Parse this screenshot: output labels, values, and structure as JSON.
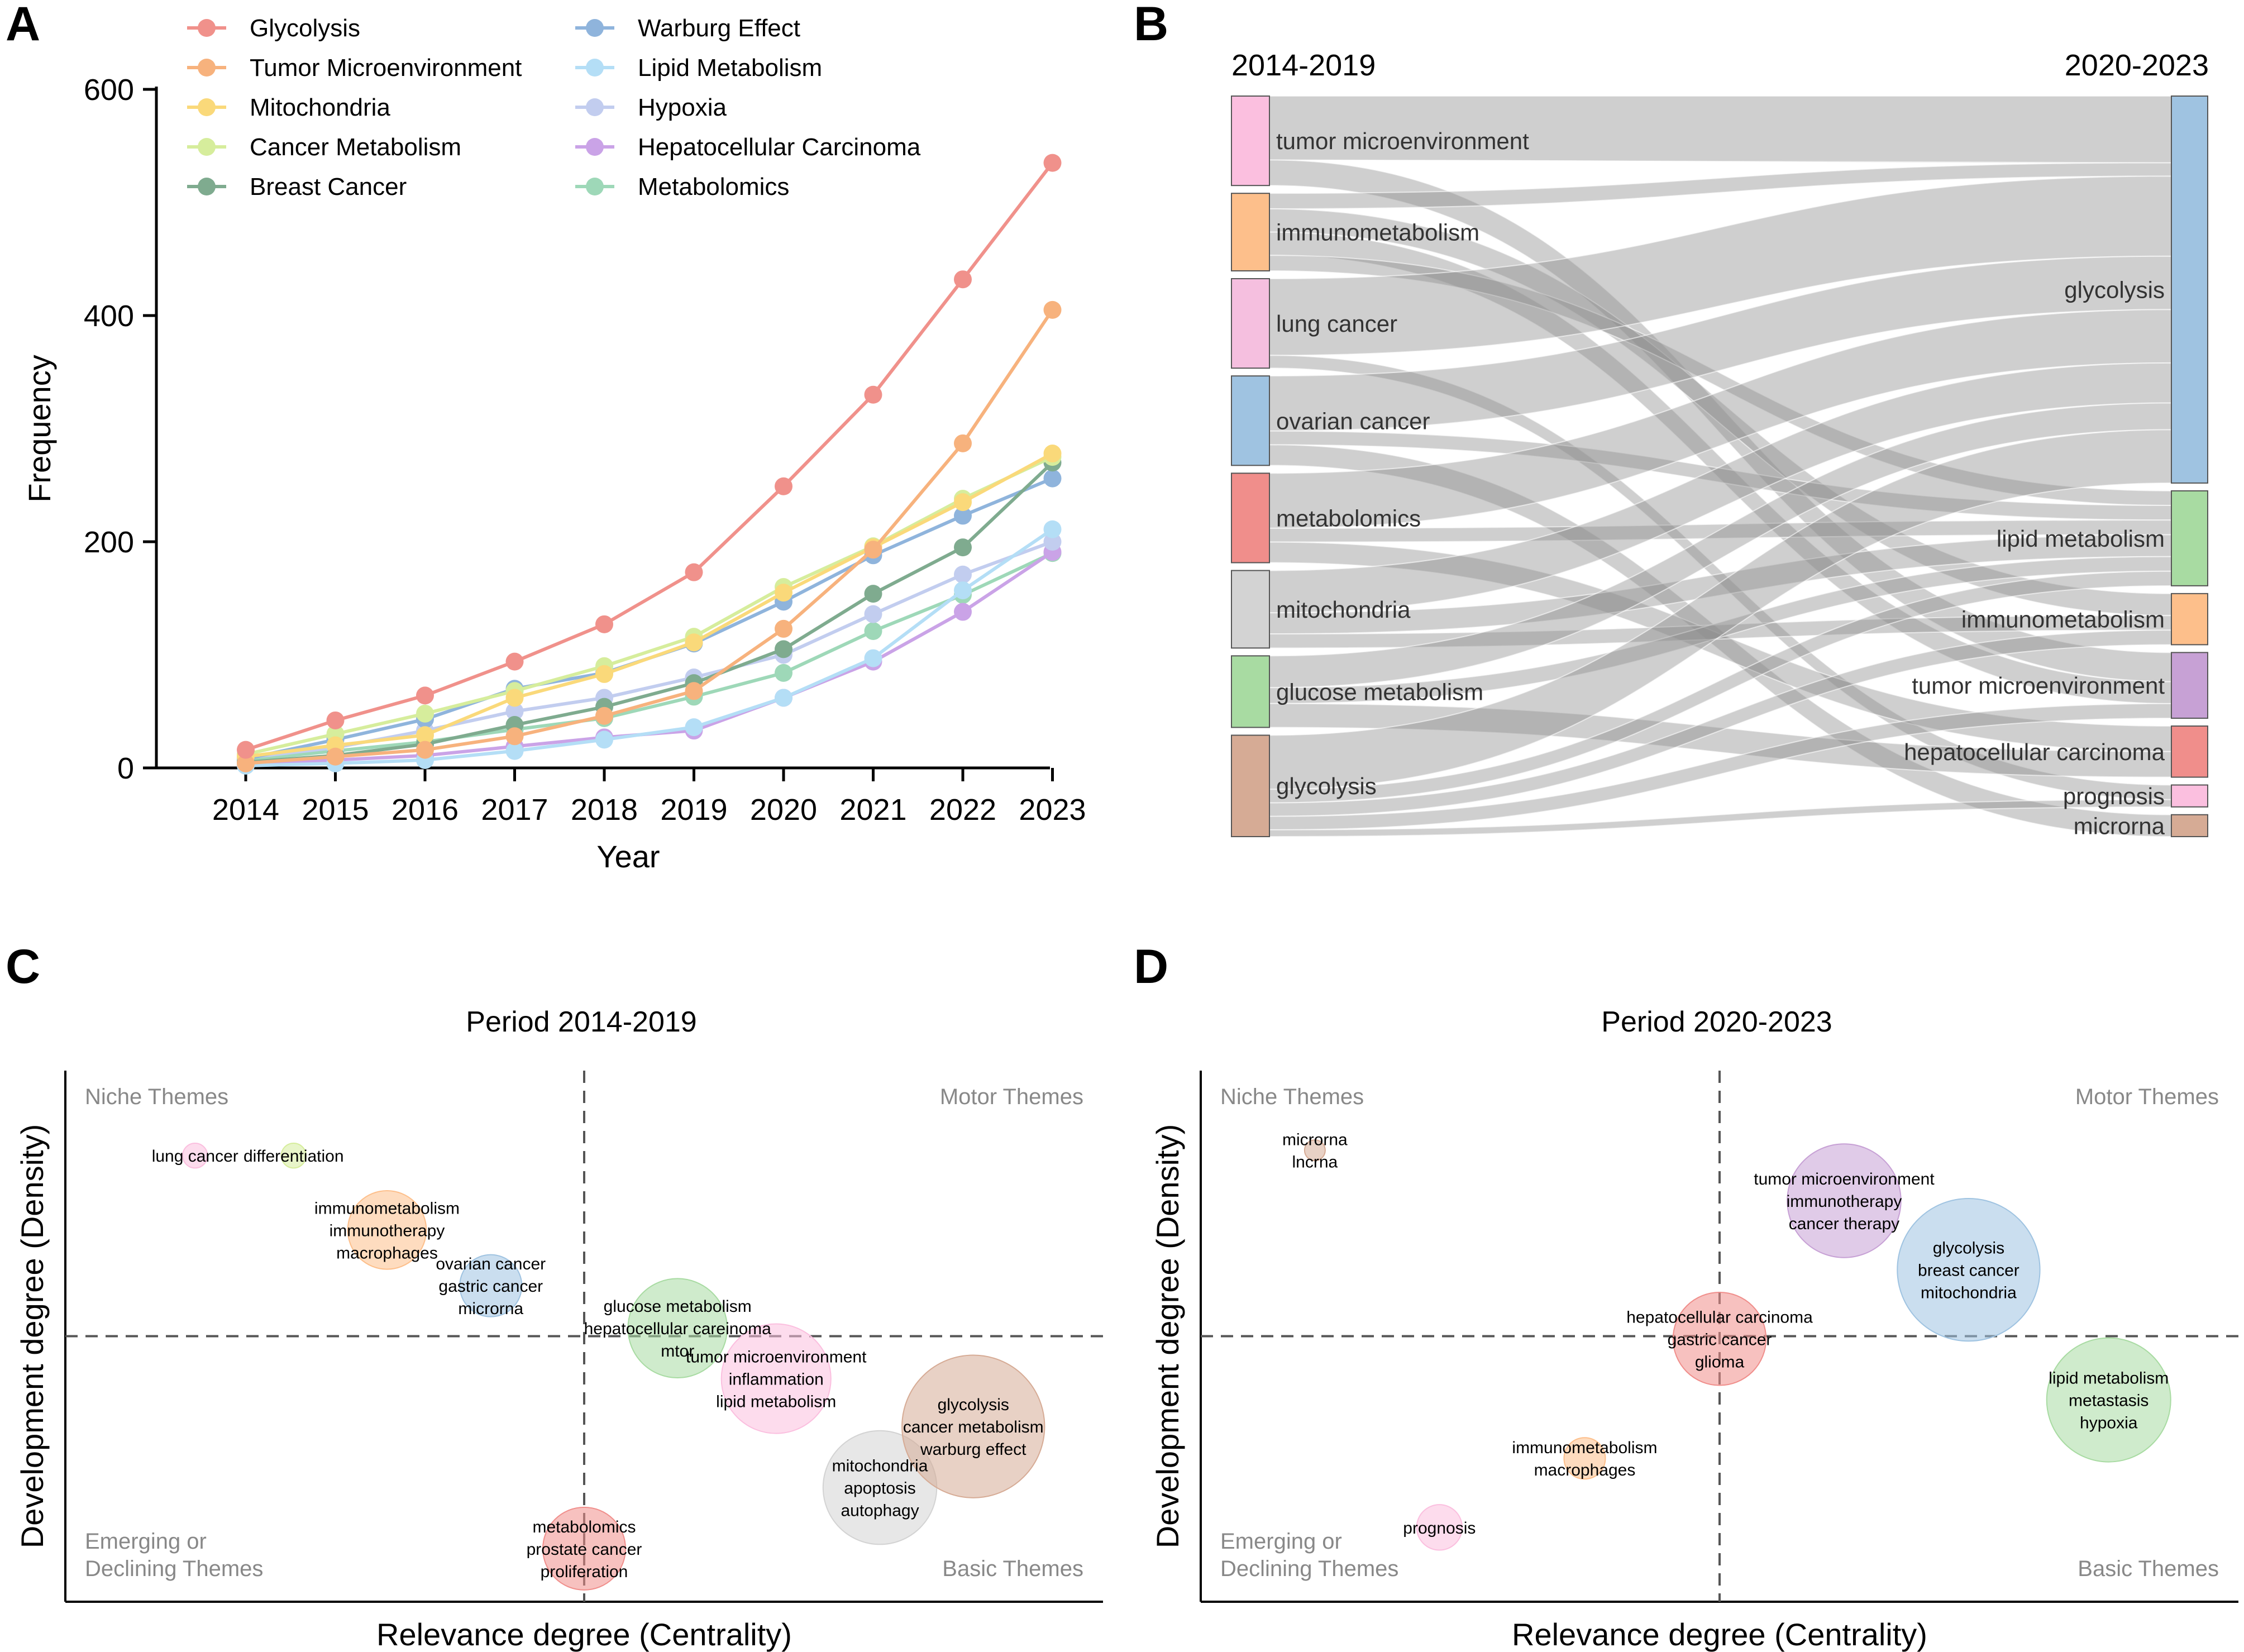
{
  "panels": {
    "a": "A",
    "b": "B",
    "c": "C",
    "d": "D"
  },
  "chart_data": [
    {
      "type": "line",
      "id": "A",
      "title": "",
      "xlabel": "Year",
      "ylabel": "Frequency",
      "x": [
        2014,
        2015,
        2016,
        2017,
        2018,
        2019,
        2020,
        2021,
        2022,
        2023
      ],
      "yticks": [
        0,
        200,
        400,
        600
      ],
      "ylim": [
        0,
        600
      ],
      "legend": "top-left, two columns",
      "series": [
        {
          "name": "Glycolysis",
          "color": "#f0918b",
          "values": [
            16,
            42,
            64,
            94,
            127,
            173,
            249,
            330,
            432,
            535
          ]
        },
        {
          "name": "Tumor Microenvironment",
          "color": "#f7b27d",
          "values": [
            4,
            10,
            16,
            28,
            46,
            68,
            123,
            193,
            287,
            405
          ]
        },
        {
          "name": "Mitochondria",
          "color": "#fad97a",
          "values": [
            10,
            20,
            29,
            62,
            83,
            111,
            155,
            195,
            235,
            278
          ]
        },
        {
          "name": "Cancer Metabolism",
          "color": "#d6ed9c",
          "values": [
            12,
            30,
            48,
            68,
            90,
            116,
            160,
            196,
            238,
            275
          ]
        },
        {
          "name": "Breast Cancer",
          "color": "#7fab8f",
          "values": [
            5,
            11,
            21,
            38,
            54,
            75,
            105,
            154,
            195,
            270
          ]
        },
        {
          "name": "Warburg Effect",
          "color": "#8fb4dc",
          "values": [
            8,
            25,
            43,
            70,
            84,
            110,
            147,
            188,
            223,
            256
          ]
        },
        {
          "name": "Lipid Metabolism",
          "color": "#b4def6",
          "values": [
            2,
            4,
            7,
            15,
            25,
            36,
            62,
            97,
            157,
            211
          ]
        },
        {
          "name": "Hypoxia",
          "color": "#c2cdef",
          "values": [
            9,
            18,
            33,
            50,
            62,
            80,
            100,
            136,
            171,
            200
          ]
        },
        {
          "name": "Hepatocellular Carcinoma",
          "color": "#caa3e7",
          "values": [
            3,
            7,
            11,
            19,
            27,
            33,
            62,
            94,
            138,
            191
          ]
        },
        {
          "name": "Metabolomics",
          "color": "#9ed8b8",
          "values": [
            7,
            15,
            23,
            34,
            44,
            63,
            84,
            121,
            153,
            190
          ]
        }
      ]
    },
    {
      "type": "sankey",
      "id": "B",
      "left_period": "2014-2019",
      "right_period": "2020-2023",
      "left_nodes": [
        {
          "name": "tumor microenvironment",
          "color": "#fbbfdf",
          "weight": 15
        },
        {
          "name": "immunometabolism",
          "color": "#fdbf8b",
          "weight": 13
        },
        {
          "name": "lung cancer",
          "color": "#f5bfdf",
          "weight": 15
        },
        {
          "name": "ovarian cancer",
          "color": "#9fc3e1",
          "weight": 15
        },
        {
          "name": "metabolomics",
          "color": "#f08e8b",
          "weight": 15
        },
        {
          "name": "mitochondria",
          "color": "#d3d3d3",
          "weight": 13
        },
        {
          "name": "glucose metabolism",
          "color": "#a8dba2",
          "weight": 12
        },
        {
          "name": "glycolysis",
          "color": "#d6ab95",
          "weight": 17
        }
      ],
      "right_nodes": [
        {
          "name": "glycolysis",
          "color": "#9fc3e1",
          "weight": 53
        },
        {
          "name": "lipid metabolism",
          "color": "#a8dba2",
          "weight": 13
        },
        {
          "name": "immunometabolism",
          "color": "#fdbf8b",
          "weight": 7
        },
        {
          "name": "tumor microenvironment",
          "color": "#c7a1d5",
          "weight": 9
        },
        {
          "name": "hepatocellular carcinoma",
          "color": "#f08e8b",
          "weight": 7
        },
        {
          "name": "prognosis",
          "color": "#fbbfdf",
          "weight": 3
        },
        {
          "name": "microrna",
          "color": "#d6ab95",
          "weight": 3
        }
      ],
      "flows": [
        {
          "source": "tumor microenvironment",
          "target": "glycolysis",
          "value": 10
        },
        {
          "source": "tumor microenvironment",
          "target": "tumor microenvironment",
          "value": 4
        },
        {
          "source": "immunometabolism",
          "target": "glycolysis",
          "value": 2
        },
        {
          "source": "immunometabolism",
          "target": "immunometabolism",
          "value": 3
        },
        {
          "source": "immunometabolism",
          "target": "tumor microenvironment",
          "value": 3
        },
        {
          "source": "immunometabolism",
          "target": "lipid metabolism",
          "value": 2
        },
        {
          "source": "lung cancer",
          "target": "glycolysis",
          "value": 12
        },
        {
          "source": "lung cancer",
          "target": "prognosis",
          "value": 2
        },
        {
          "source": "ovarian cancer",
          "target": "glycolysis",
          "value": 8
        },
        {
          "source": "ovarian cancer",
          "target": "lipid metabolism",
          "value": 2
        },
        {
          "source": "ovarian cancer",
          "target": "microrna",
          "value": 3
        },
        {
          "source": "metabolomics",
          "target": "glycolysis",
          "value": 8
        },
        {
          "source": "metabolomics",
          "target": "lipid metabolism",
          "value": 2
        },
        {
          "source": "metabolomics",
          "target": "hepatocellular carcinoma",
          "value": 3
        },
        {
          "source": "mitochondria",
          "target": "glycolysis",
          "value": 6
        },
        {
          "source": "mitochondria",
          "target": "lipid metabolism",
          "value": 3
        },
        {
          "source": "mitochondria",
          "target": "immunometabolism",
          "value": 2
        },
        {
          "source": "glucose metabolism",
          "target": "glycolysis",
          "value": 4
        },
        {
          "source": "glucose metabolism",
          "target": "lipid metabolism",
          "value": 2
        },
        {
          "source": "glucose metabolism",
          "target": "hepatocellular carcinoma",
          "value": 3
        },
        {
          "source": "glycolysis",
          "target": "glycolysis",
          "value": 8
        },
        {
          "source": "glycolysis",
          "target": "lipid metabolism",
          "value": 2
        },
        {
          "source": "glycolysis",
          "target": "immunometabolism",
          "value": 2
        },
        {
          "source": "glycolysis",
          "target": "tumor microenvironment",
          "value": 2
        },
        {
          "source": "glycolysis",
          "target": "prognosis",
          "value": 1
        }
      ]
    },
    {
      "type": "bubble",
      "id": "C",
      "title": "Period 2014-2019",
      "xlabel": "Relevance degree (Centrality)",
      "ylabel": "Development degree (Density)",
      "quadrants": {
        "top_left": "Niche Themes",
        "top_right": "Motor Themes",
        "bottom_left_1": "Emerging or",
        "bottom_left_2": "Declining Themes",
        "bottom_right": "Basic Themes"
      },
      "xdiv": 0.5,
      "ydiv": 0.5,
      "bubbles": [
        {
          "labels": [
            "lung cancer"
          ],
          "x": 0.125,
          "y": 0.84,
          "size": 12,
          "color": "#fbbfdf"
        },
        {
          "labels": [
            "differentiation"
          ],
          "x": 0.22,
          "y": 0.84,
          "size": 12,
          "color": "#d6ed9c"
        },
        {
          "labels": [
            "immunometabolism",
            "immunotherapy",
            "macrophages"
          ],
          "x": 0.31,
          "y": 0.7,
          "size": 38,
          "color": "#fdbf8b"
        },
        {
          "labels": [
            "ovarian cancer",
            "gastric cancer",
            "microrna"
          ],
          "x": 0.41,
          "y": 0.595,
          "size": 30,
          "color": "#9fc3e1"
        },
        {
          "labels": [
            "glucose metabolism",
            "hepatocellular careinoma",
            "mtor"
          ],
          "x": 0.59,
          "y": 0.515,
          "size": 48,
          "color": "#a8dba2"
        },
        {
          "labels": [
            "tumor microenvironment",
            "inflammation",
            "lipid metabolism"
          ],
          "x": 0.685,
          "y": 0.42,
          "size": 53,
          "color": "#fbbfdf"
        },
        {
          "labels": [
            "mitochondria",
            "apoptosis",
            "autophagy"
          ],
          "x": 0.785,
          "y": 0.215,
          "size": 55,
          "color": "#d3d3d3"
        },
        {
          "labels": [
            "glycolysis",
            "cancer metabolism",
            "warburg effect"
          ],
          "x": 0.875,
          "y": 0.33,
          "size": 69,
          "color": "#d6ab95"
        },
        {
          "labels": [
            "metabolomics",
            "prostate cancer",
            "proliferation"
          ],
          "x": 0.5,
          "y": 0.1,
          "size": 40,
          "color": "#f08e8b"
        }
      ]
    },
    {
      "type": "bubble",
      "id": "D",
      "title": "Period 2020-2023",
      "xlabel": "Relevance degree (Centrality)",
      "ylabel": "Development degree (Density)",
      "quadrants": {
        "top_left": "Niche Themes",
        "top_right": "Motor Themes",
        "bottom_left_1": "Emerging or",
        "bottom_left_2": "Declining Themes",
        "bottom_right": "Basic Themes"
      },
      "xdiv": 0.5,
      "ydiv": 0.5,
      "bubbles": [
        {
          "labels": [
            "microrna",
            "lncrna"
          ],
          "x": 0.11,
          "y": 0.85,
          "size": 10,
          "color": "#d6ab95"
        },
        {
          "labels": [
            "tumor microenvironment",
            "immunotherapy",
            "cancer therapy"
          ],
          "x": 0.62,
          "y": 0.755,
          "size": 55,
          "color": "#c7a1d5"
        },
        {
          "labels": [
            "glycolysis",
            "breast cancer",
            "mitochondria"
          ],
          "x": 0.74,
          "y": 0.625,
          "size": 69,
          "color": "#9fc3e1"
        },
        {
          "labels": [
            "hepatocellular carcinoma",
            "gastric cancer",
            "glioma"
          ],
          "x": 0.5,
          "y": 0.495,
          "size": 45,
          "color": "#f08e8b"
        },
        {
          "labels": [
            "lipid metabolism",
            "metastasis",
            "hypoxia"
          ],
          "x": 0.875,
          "y": 0.38,
          "size": 60,
          "color": "#a8dba2"
        },
        {
          "labels": [
            "immunometabolism",
            "macrophages"
          ],
          "x": 0.37,
          "y": 0.27,
          "size": 20,
          "color": "#fdbf8b"
        },
        {
          "labels": [
            "prognosis"
          ],
          "x": 0.23,
          "y": 0.14,
          "size": 22,
          "color": "#fbbfdf"
        }
      ]
    }
  ]
}
